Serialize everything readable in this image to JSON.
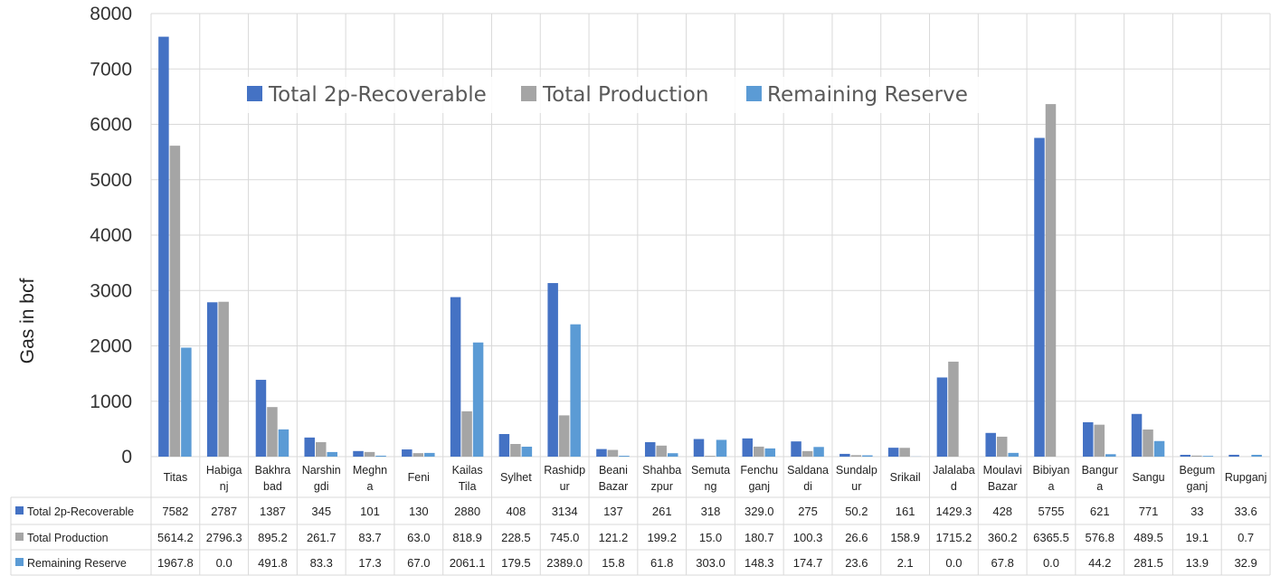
{
  "chart_data": {
    "type": "bar",
    "ylabel": "Gas in bcf",
    "ylim": [
      0,
      8000
    ],
    "yticks": [
      "0",
      "1000",
      "2000",
      "3000",
      "4000",
      "5000",
      "6000",
      "7000",
      "8000"
    ],
    "grid": true,
    "legend_position": "top-center",
    "categories": [
      [
        "Titas"
      ],
      [
        "Habiga",
        "nj"
      ],
      [
        "Bakhra",
        "bad"
      ],
      [
        "Narshin",
        "gdi"
      ],
      [
        "Meghn",
        "a"
      ],
      [
        "Feni"
      ],
      [
        "Kailas",
        "Tila"
      ],
      [
        "Sylhet"
      ],
      [
        "Rashidp",
        "ur"
      ],
      [
        "Beani",
        "Bazar"
      ],
      [
        "Shahba",
        "zpur"
      ],
      [
        "Semuta",
        "ng"
      ],
      [
        "Fenchu",
        "ganj"
      ],
      [
        "Saldana",
        "di"
      ],
      [
        "Sundalp",
        "ur"
      ],
      [
        "Srikail"
      ],
      [
        "Jalalaba",
        "d"
      ],
      [
        "Moulavi",
        "Bazar"
      ],
      [
        "Bibiyan",
        "a"
      ],
      [
        "Bangur",
        "a"
      ],
      [
        "Sangu"
      ],
      [
        "Begum",
        "ganj"
      ],
      [
        "Rupganj"
      ]
    ],
    "series": [
      {
        "name": "Total 2p-Recoverable",
        "color": "#4472C4",
        "values": [
          7582,
          2787,
          1387,
          345,
          101,
          130,
          2880,
          408,
          3134,
          137,
          261,
          318,
          329.0,
          275,
          50.2,
          161,
          1429.3,
          428,
          5755,
          621,
          771,
          33,
          33.6
        ],
        "labels": [
          "7582",
          "2787",
          "1387",
          "345",
          "101",
          "130",
          "2880",
          "408",
          "3134",
          "137",
          "261",
          "318",
          "329.0",
          "275",
          "50.2",
          "161",
          "1429.3",
          "428",
          "5755",
          "621",
          "771",
          "33",
          "33.6"
        ]
      },
      {
        "name": "Total Production",
        "color": "#A5A5A5",
        "values": [
          5614.2,
          2796.3,
          895.2,
          261.7,
          83.7,
          63.0,
          818.9,
          228.5,
          745.0,
          121.2,
          199.2,
          15.0,
          180.7,
          100.3,
          26.6,
          158.9,
          1715.2,
          360.2,
          6365.5,
          576.8,
          489.5,
          19.1,
          0.7
        ],
        "labels": [
          "5614.2",
          "2796.3",
          "895.2",
          "261.7",
          "83.7",
          "63.0",
          "818.9",
          "228.5",
          "745.0",
          "121.2",
          "199.2",
          "15.0",
          "180.7",
          "100.3",
          "26.6",
          "158.9",
          "1715.2",
          "360.2",
          "6365.5",
          "576.8",
          "489.5",
          "19.1",
          "0.7"
        ]
      },
      {
        "name": "Remaining Reserve",
        "color": "#5B9BD5",
        "values": [
          1967.8,
          0.0,
          491.8,
          83.3,
          17.3,
          67.0,
          2061.1,
          179.5,
          2389.0,
          15.8,
          61.8,
          303.0,
          148.3,
          174.7,
          23.6,
          2.1,
          0.0,
          67.8,
          0.0,
          44.2,
          281.5,
          13.9,
          32.9
        ],
        "labels": [
          "1967.8",
          "0.0",
          "491.8",
          "83.3",
          "17.3",
          "67.0",
          "2061.1",
          "179.5",
          "2389.0",
          "15.8",
          "61.8",
          "303.0",
          "148.3",
          "174.7",
          "23.6",
          "2.1",
          "0.0",
          "67.8",
          "0.0",
          "44.2",
          "281.5",
          "13.9",
          "32.9"
        ]
      }
    ]
  }
}
